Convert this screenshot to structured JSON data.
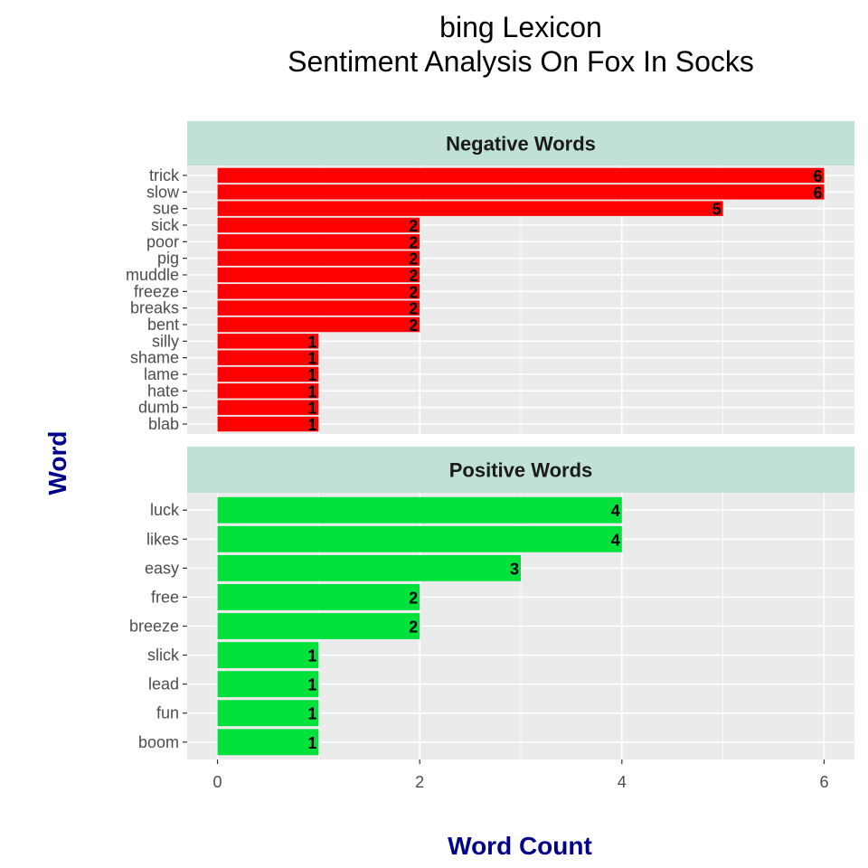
{
  "chart_data": {
    "type": "bar",
    "orientation": "horizontal",
    "title": "bing Lexicon",
    "subtitle": "Sentiment Analysis On Fox In Socks",
    "xlabel": "Word Count",
    "ylabel": "Word",
    "xlim": [
      -0.3,
      6.3
    ],
    "xticks": [
      0,
      2,
      4,
      6
    ],
    "grid": true,
    "colors": {
      "negative": "#ff0000",
      "positive": "#00e13c",
      "strip": "#c0e1d5",
      "panel": "#ebebeb",
      "axis_title": "#00008b"
    },
    "panels": [
      {
        "name": "Negative Words",
        "color_key": "negative",
        "categories": [
          "trick",
          "slow",
          "sue",
          "sick",
          "poor",
          "pig",
          "muddle",
          "freeze",
          "breaks",
          "bent",
          "silly",
          "shame",
          "lame",
          "hate",
          "dumb",
          "blab"
        ],
        "values": [
          6,
          6,
          5,
          2,
          2,
          2,
          2,
          2,
          2,
          2,
          1,
          1,
          1,
          1,
          1,
          1
        ]
      },
      {
        "name": "Positive Words",
        "color_key": "positive",
        "categories": [
          "luck",
          "likes",
          "easy",
          "free",
          "breeze",
          "slick",
          "lead",
          "fun",
          "boom"
        ],
        "values": [
          4,
          4,
          3,
          2,
          2,
          1,
          1,
          1,
          1
        ]
      }
    ]
  }
}
